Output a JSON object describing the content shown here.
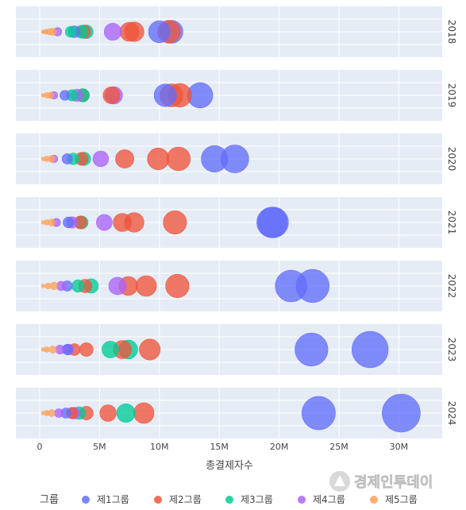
{
  "chart_data": {
    "type": "scatter",
    "xlabel": "총결제자수",
    "x_ticks": [
      {
        "value": 0,
        "label": "0"
      },
      {
        "value": 5000000,
        "label": "5M"
      },
      {
        "value": 10000000,
        "label": "10M"
      },
      {
        "value": 15000000,
        "label": "15M"
      },
      {
        "value": 20000000,
        "label": "20M"
      },
      {
        "value": 25000000,
        "label": "25M"
      },
      {
        "value": 30000000,
        "label": "30M"
      }
    ],
    "xlim": [
      -2000000,
      34500000
    ],
    "grid": true,
    "facets": [
      "2018",
      "2019",
      "2020",
      "2021",
      "2022",
      "2023",
      "2024"
    ],
    "legend": {
      "title": "그룹",
      "placement": "bottom",
      "entries": [
        {
          "name": "제1그룹",
          "color": "#636efa"
        },
        {
          "name": "제2그룹",
          "color": "#ef553b"
        },
        {
          "name": "제3그룹",
          "color": "#00cc96"
        },
        {
          "name": "제4그룹",
          "color": "#ab63fa"
        },
        {
          "name": "제5그룹",
          "color": "#ffa15a"
        }
      ]
    },
    "points": {
      "2018": {
        "제1그룹": [
          11000000,
          10000000,
          2900000
        ],
        "제2그룹": [
          10800000,
          7900000,
          7500000,
          3700000
        ],
        "제3그룹": [
          3900000,
          3500000,
          2600000
        ],
        "제4그룹": [
          6100000,
          1500000
        ],
        "제5그룹": [
          1100000,
          800000,
          500000,
          300000
        ]
      },
      "2019": {
        "제1그룹": [
          13400000,
          10500000,
          2100000
        ],
        "제2그룹": [
          11700000,
          11000000,
          6000000,
          3600000
        ],
        "제3그룹": [
          3600000,
          2700000
        ],
        "제4그룹": [
          6200000,
          1200000,
          3100000
        ],
        "제5그룹": [
          900000,
          600000,
          300000
        ]
      },
      "2020": {
        "제1그룹": [
          16300000,
          14600000,
          2300000
        ],
        "제2그룹": [
          11600000,
          9900000,
          7100000,
          3500000
        ],
        "제3그룹": [
          3700000,
          2800000
        ],
        "제4그룹": [
          5100000,
          1200000
        ],
        "제5그룹": [
          1000000,
          600000,
          300000
        ]
      },
      "2021": {
        "제1그룹": [
          19500000,
          19400000,
          2400000
        ],
        "제2그룹": [
          11300000,
          7900000,
          6900000,
          3400000
        ],
        "제3그룹": [
          3500000
        ],
        "제4그룹": [
          5400000,
          2700000,
          1400000
        ],
        "제5그룹": [
          1000000,
          600000,
          300000
        ]
      },
      "2022": {
        "제1그룹": [
          22800000,
          21000000,
          2300000
        ],
        "제2그룹": [
          11500000,
          8900000,
          7400000,
          3800000
        ],
        "제3그룹": [
          4300000,
          3200000
        ],
        "제4그룹": [
          6500000,
          1800000
        ],
        "제5그룹": [
          1200000,
          700000,
          300000
        ]
      },
      "2023": {
        "제1그룹": [
          27600000,
          22700000,
          2300000
        ],
        "제2그룹": [
          9200000,
          6900000,
          3900000,
          2900000
        ],
        "제3그룹": [
          5900000,
          7400000
        ],
        "제4그룹": [
          1700000,
          2400000
        ],
        "제5그룹": [
          1100000,
          600000,
          300000
        ]
      },
      "2024": {
        "제1그룹": [
          30200000,
          23300000,
          2200000
        ],
        "제2그룹": [
          8700000,
          5700000,
          3900000,
          2700000
        ],
        "제3그룹": [
          7200000,
          3300000
        ],
        "제4그룹": [
          2900000,
          1600000
        ],
        "제5그룹": [
          1000000,
          600000,
          300000
        ]
      }
    }
  },
  "watermark": "경제인투데이"
}
